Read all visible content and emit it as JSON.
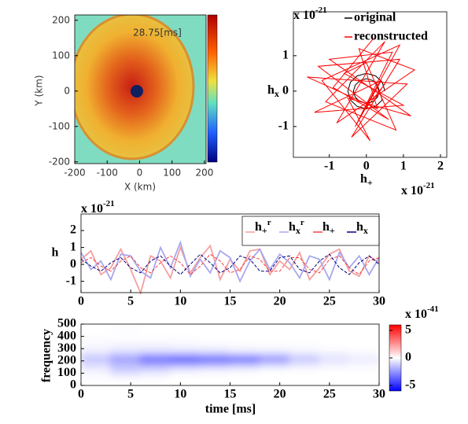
{
  "chart_data": [
    {
      "type": "image",
      "annotation": "28.75[ms]",
      "xlabel": "X (km)",
      "ylabel": "Y (km)",
      "xlim": [
        -200,
        205
      ],
      "ylim": [
        -205,
        215
      ],
      "xticks": [
        -200,
        -100,
        0,
        100,
        200
      ],
      "yticks": [
        -200,
        -100,
        0,
        100,
        200
      ]
    },
    {
      "type": "scatter-line",
      "xlabel": {
        "main": "h",
        "sub": "+"
      },
      "ylabel": {
        "main": "h",
        "sub": "x"
      },
      "xexp": {
        "base": "x 10",
        "exp": "-21"
      },
      "yexp": {
        "base": "x 10",
        "exp": "-21"
      },
      "xlim": [
        -1.97,
        2.17
      ],
      "ylim": [
        -1.87,
        2.24
      ],
      "xticks": [
        -1,
        0,
        1,
        2
      ],
      "yticks": [
        -1,
        0,
        1
      ],
      "legend": "upper right",
      "series": [
        {
          "name": "original",
          "color": "#000000",
          "x": [
            0.5,
            0.43,
            0.25,
            0,
            -0.25,
            -0.43,
            -0.5,
            -0.43,
            -0.25,
            0,
            0.25,
            0.43,
            0.35,
            0.3,
            0.17,
            0,
            -0.17,
            -0.3,
            -0.35,
            -0.3,
            -0.17,
            0,
            0.17,
            0.3,
            0.35
          ],
          "y": [
            0,
            0.25,
            0.43,
            0.5,
            0.43,
            0.25,
            0,
            -0.25,
            -0.43,
            -0.5,
            -0.43,
            -0.25,
            0,
            0.17,
            0.3,
            0.35,
            0.3,
            0.17,
            0,
            -0.17,
            -0.3,
            -0.35,
            -0.3,
            -0.17,
            0
          ]
        },
        {
          "name": "reconstructed",
          "color": "#ff0000",
          "x": [
            0.2,
            -0.9,
            0.6,
            -1.3,
            0.9,
            -0.4,
            1.1,
            -1.6,
            0.3,
            -0.2,
            1.3,
            -0.8,
            0.5,
            -1.1,
            0.8,
            0,
            -0.6,
            1.0,
            -1.4,
            0.4,
            -0.3,
            0.7,
            -1.0,
            1.2,
            -0.5,
            0.1,
            -1.2,
            0.9,
            -0.1,
            0.5
          ],
          "y": [
            1.5,
            0.1,
            -0.8,
            0.7,
            0.9,
            -1.3,
            0.2,
            0.4,
            -0.5,
            1.2,
            0.6,
            -0.9,
            1.4,
            -0.3,
            -1.1,
            0.8,
            0.5,
            -0.4,
            -0.6,
            0.3,
            -1.0,
            1.1,
            0.9,
            -0.7,
            -0.2,
            -1.4,
            0.3,
            1.3,
            -0.6,
            0.2
          ]
        }
      ]
    },
    {
      "type": "line",
      "ylabel": "h",
      "yexp": {
        "base": "x 10",
        "exp": "-21"
      },
      "x": [
        0,
        1,
        2,
        3,
        4,
        5,
        6,
        7,
        8,
        9,
        10,
        11,
        12,
        13,
        14,
        15,
        16,
        17,
        18,
        19,
        20,
        21,
        22,
        23,
        24,
        25,
        26,
        27,
        28,
        29,
        30
      ],
      "xlim": [
        0,
        30
      ],
      "ylim": [
        -1.67,
        2.98
      ],
      "xticks": [
        0,
        5,
        10,
        15,
        20,
        25,
        30
      ],
      "yticks": [
        -1,
        0,
        1,
        2
      ],
      "legend": "upper right",
      "series": [
        {
          "name": "h",
          "sup": "r",
          "sub": "+",
          "color": "#f4a0a0",
          "dash": false,
          "values": [
            0.3,
            0.8,
            -0.6,
            -0.2,
            0.9,
            -0.3,
            -1.7,
            0.5,
            0.2,
            -0.8,
            1.0,
            -0.5,
            0.4,
            1.1,
            -0.9,
            0.3,
            -0.4,
            0.8,
            0.9,
            -0.6,
            0.2,
            -0.3,
            0.7,
            -0.9,
            -0.2,
            0.6,
            0.9,
            -0.4,
            -0.7,
            0.5,
            0.1
          ]
        },
        {
          "name": "h",
          "sup": "r",
          "sub": "x",
          "color": "#a8a8f0",
          "dash": false,
          "values": [
            0.7,
            -0.3,
            0.2,
            -0.9,
            0.6,
            0.5,
            -0.4,
            -0.8,
            1.0,
            -0.2,
            1.3,
            -0.7,
            0.3,
            -0.5,
            0.8,
            0.4,
            -1.0,
            0.2,
            0.9,
            -0.3,
            0.6,
            0.1,
            -0.8,
            0.5,
            0.3,
            -0.9,
            0.7,
            -0.2,
            0.5,
            -0.6,
            0.4
          ]
        },
        {
          "name": "h",
          "sub": "+",
          "color": "#ff4040",
          "dash": true,
          "values": [
            0.1,
            0.4,
            -0.1,
            -0.4,
            0.2,
            0.5,
            -0.2,
            -0.5,
            0.1,
            0.5,
            0.1,
            -0.6,
            -0.1,
            0.6,
            0.2,
            -0.5,
            -0.3,
            0.5,
            0.3,
            -0.4,
            -0.4,
            0.4,
            0.4,
            -0.3,
            -0.5,
            0.3,
            0.5,
            -0.2,
            -0.6,
            0.2,
            0.4
          ]
        },
        {
          "name": "h",
          "sub": "x",
          "color": "#000080",
          "dash": true,
          "values": [
            0.3,
            -0.1,
            -0.4,
            0.1,
            0.4,
            -0.2,
            -0.5,
            0.2,
            0.5,
            -0.1,
            -0.6,
            0,
            0.6,
            0.1,
            -0.5,
            -0.2,
            0.5,
            0.3,
            -0.4,
            -0.4,
            0.4,
            0.5,
            -0.3,
            -0.5,
            0.2,
            0.6,
            -0.2,
            -0.6,
            0.1,
            0.5,
            0
          ]
        }
      ]
    },
    {
      "type": "heatmap",
      "xlabel": "time [ms]",
      "ylabel": "frequency",
      "x": [
        1.5,
        4.5,
        7.5,
        10.5,
        13.5,
        16.5,
        19.5,
        22.5,
        25.5,
        28.5
      ],
      "y": [
        25,
        75,
        125,
        175,
        225,
        275,
        325,
        375,
        425,
        475
      ],
      "z": [
        [
          0,
          0,
          0,
          0,
          0,
          0,
          0,
          0,
          0,
          0
        ],
        [
          -0.1,
          -0.2,
          -0.1,
          0,
          0,
          0,
          0,
          0,
          0,
          0
        ],
        [
          -0.3,
          -1.2,
          -0.8,
          -0.3,
          -0.2,
          -0.1,
          0,
          0,
          0,
          0
        ],
        [
          -0.8,
          -1.5,
          -2,
          -2,
          -1.8,
          -1.5,
          -1,
          -0.6,
          -0.3,
          -0.2
        ],
        [
          -1.5,
          -2.5,
          -4,
          -4.5,
          -4.2,
          -4,
          -3,
          -1.5,
          -0.8,
          -0.5
        ],
        [
          -0.5,
          -0.8,
          -1,
          -1,
          -0.8,
          -0.6,
          -0.5,
          -0.3,
          -0.2,
          -0.1
        ],
        [
          -0.2,
          -0.3,
          -0.3,
          -0.2,
          -0.2,
          -0.1,
          -0.1,
          -0.1,
          0,
          0
        ],
        [
          -0.1,
          -0.1,
          -0.1,
          -0.1,
          0,
          0,
          0,
          0,
          0,
          0
        ],
        [
          0,
          0,
          0,
          0,
          0,
          0,
          0,
          0,
          0,
          0
        ],
        [
          0,
          -0.1,
          0,
          0,
          0,
          0,
          0,
          0,
          0,
          0
        ]
      ],
      "xlim": [
        0,
        30
      ],
      "ylim": [
        0,
        500
      ],
      "xticks": [
        0,
        5,
        10,
        15,
        20,
        25,
        30
      ],
      "yticks": [
        0,
        100,
        200,
        300,
        400,
        500
      ],
      "clim": [
        -6,
        6
      ],
      "cticks": [
        -5,
        0,
        5
      ],
      "cexp": {
        "base": "x 10",
        "exp": "-41"
      }
    }
  ]
}
